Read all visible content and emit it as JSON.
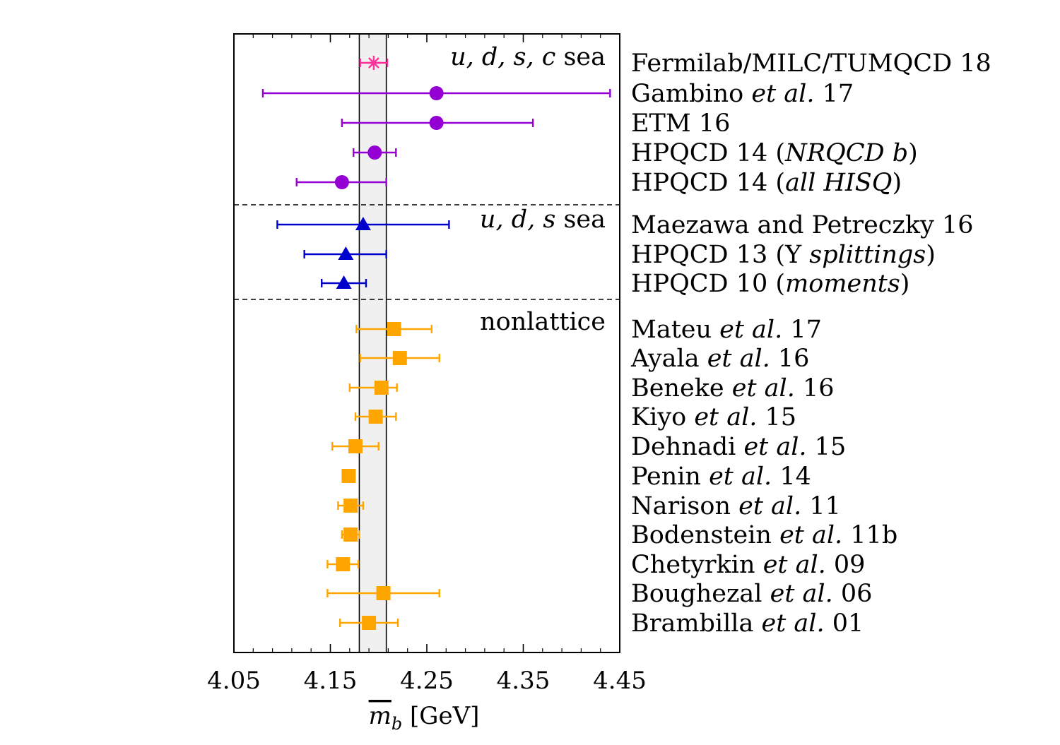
{
  "chart_data": {
    "type": "scatter",
    "subtype": "horizontal error-bar plot",
    "xlabel": "m̄b [GeV]",
    "xlabel_parts": {
      "symbol": "m",
      "subscript": "b",
      "unit": "[GeV]"
    },
    "xlim": [
      4.05,
      4.45
    ],
    "xticks": [
      4.05,
      4.15,
      4.25,
      4.35,
      4.45
    ],
    "xtick_labels": [
      "4.05",
      "4.15",
      "4.25",
      "4.35",
      "4.45"
    ],
    "grid": false,
    "average_band": {
      "low": 4.18,
      "high": 4.208
    },
    "sections": [
      {
        "label": "u, d, s, c sea",
        "italic_part": "u, d, s, c",
        "plain_part": " sea"
      },
      {
        "label": "u, d, s sea",
        "italic_part": "u, d, s",
        "plain_part": " sea"
      },
      {
        "label": "nonlattice",
        "italic_part": "",
        "plain_part": "nonlattice"
      }
    ],
    "colors": {
      "fermilab": "#ff3399",
      "nf4": "#9400d3",
      "nf3": "#0000cd",
      "nonlattice": "#ffa500"
    },
    "entries": [
      {
        "label": "Fermilab/MILC/TUMQCD 18",
        "label_parts": [
          "Fermilab/MILC/TUMQCD 18"
        ],
        "value": 4.195,
        "low": 4.181,
        "high": 4.209,
        "marker": "star",
        "color_key": "fermilab",
        "section": 0
      },
      {
        "label": "Gambino et al. 17",
        "label_parts": [
          "Gambino ",
          "et al.",
          " 17"
        ],
        "value": 4.26,
        "low": 4.08,
        "high": 4.44,
        "marker": "circle",
        "color_key": "nf4",
        "section": 0
      },
      {
        "label": "ETM 16",
        "label_parts": [
          "ETM 16"
        ],
        "value": 4.26,
        "low": 4.162,
        "high": 4.36,
        "marker": "circle",
        "color_key": "nf4",
        "section": 0
      },
      {
        "label": "HPQCD 14 (NRQCD b)",
        "label_parts": [
          "HPQCD 14 (",
          "NRQCD b",
          ")"
        ],
        "value": 4.196,
        "low": 4.174,
        "high": 4.218,
        "marker": "circle",
        "color_key": "nf4",
        "section": 0
      },
      {
        "label": "HPQCD 14 (all HISQ)",
        "label_parts": [
          "HPQCD 14 (",
          "all HISQ",
          ")"
        ],
        "value": 4.162,
        "low": 4.115,
        "high": 4.208,
        "marker": "circle",
        "color_key": "nf4",
        "section": 0
      },
      {
        "label": "Maezawa and Petreczky 16",
        "label_parts": [
          "Maezawa and Petreczky 16"
        ],
        "value": 4.184,
        "low": 4.095,
        "high": 4.273,
        "marker": "triangle",
        "color_key": "nf3",
        "section": 1
      },
      {
        "label": "HPQCD 13 (Υ splittings)",
        "label_parts": [
          "HPQCD 13 (Υ ",
          "splittings",
          ")"
        ],
        "value": 4.166,
        "low": 4.123,
        "high": 4.208,
        "marker": "triangle",
        "color_key": "nf3",
        "section": 1
      },
      {
        "label": "HPQCD 10 (moments)",
        "label_parts": [
          "HPQCD 10 (",
          "moments",
          ")"
        ],
        "value": 4.164,
        "low": 4.141,
        "high": 4.187,
        "marker": "triangle",
        "color_key": "nf3",
        "section": 1
      },
      {
        "label": "Mateu et al. 17",
        "label_parts": [
          "Mateu ",
          "et al.",
          " 17"
        ],
        "value": 4.216,
        "low": 4.177,
        "high": 4.255,
        "marker": "square",
        "color_key": "nonlattice",
        "section": 2
      },
      {
        "label": "Ayala et al. 16",
        "label_parts": [
          "Ayala ",
          "et al.",
          " 16"
        ],
        "value": 4.222,
        "low": 4.181,
        "high": 4.263,
        "marker": "square",
        "color_key": "nonlattice",
        "section": 2
      },
      {
        "label": "Beneke et al. 16",
        "label_parts": [
          "Beneke ",
          "et al.",
          " 16"
        ],
        "value": 4.203,
        "low": 4.17,
        "high": 4.219,
        "marker": "square",
        "color_key": "nonlattice",
        "section": 2
      },
      {
        "label": "Kiyo et al. 15",
        "label_parts": [
          "Kiyo ",
          "et al.",
          " 15"
        ],
        "value": 4.197,
        "low": 4.176,
        "high": 4.218,
        "marker": "square",
        "color_key": "nonlattice",
        "section": 2
      },
      {
        "label": "Dehnadi et al. 15",
        "label_parts": [
          "Dehnadi ",
          "et al.",
          " 15"
        ],
        "value": 4.176,
        "low": 4.152,
        "high": 4.2,
        "marker": "square",
        "color_key": "nonlattice",
        "section": 2
      },
      {
        "label": "Penin et al. 14",
        "label_parts": [
          "Penin ",
          "et al.",
          " 14"
        ],
        "value": 4.169,
        "low": 4.164,
        "high": 4.174,
        "marker": "square",
        "color_key": "nonlattice",
        "section": 2
      },
      {
        "label": "Narison et al. 11",
        "label_parts": [
          "Narison ",
          "et al.",
          " 11"
        ],
        "value": 4.171,
        "low": 4.158,
        "high": 4.184,
        "marker": "square",
        "color_key": "nonlattice",
        "section": 2
      },
      {
        "label": "Bodenstein et al. 11b",
        "label_parts": [
          "Bodenstein ",
          "et al.",
          " 11b"
        ],
        "value": 4.171,
        "low": 4.162,
        "high": 4.18,
        "marker": "square",
        "color_key": "nonlattice",
        "section": 2
      },
      {
        "label": "Chetyrkin et al. 09",
        "label_parts": [
          "Chetyrkin ",
          "et al.",
          " 09"
        ],
        "value": 4.163,
        "low": 4.147,
        "high": 4.179,
        "marker": "square",
        "color_key": "nonlattice",
        "section": 2
      },
      {
        "label": "Boughezal et al. 06",
        "label_parts": [
          "Boughezal ",
          "et al.",
          " 06"
        ],
        "value": 4.205,
        "low": 4.147,
        "high": 4.263,
        "marker": "square",
        "color_key": "nonlattice",
        "section": 2
      },
      {
        "label": "Brambilla et al. 01",
        "label_parts": [
          "Brambilla ",
          "et al.",
          " 01"
        ],
        "value": 4.19,
        "low": 4.16,
        "high": 4.22,
        "marker": "square",
        "color_key": "nonlattice",
        "section": 2
      }
    ]
  }
}
